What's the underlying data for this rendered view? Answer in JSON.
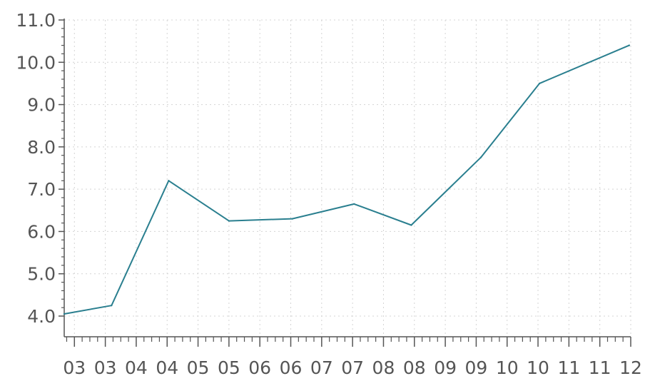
{
  "chart_data": {
    "type": "line",
    "title": "",
    "xlabel": "",
    "ylabel": "",
    "ylim": [
      4.0,
      11.0
    ],
    "grid": true,
    "y_ticks": [
      "4.0",
      "5.0",
      "6.0",
      "7.0",
      "8.0",
      "9.0",
      "10.0",
      "11.0"
    ],
    "x_tick_labels": [
      "03",
      "03",
      "04",
      "04",
      "05",
      "05",
      "06",
      "06",
      "07",
      "07",
      "08",
      "08",
      "09",
      "09",
      "10",
      "10",
      "11",
      "11",
      "12"
    ],
    "x": [
      "03",
      "04",
      "05",
      "06",
      "07",
      "08",
      "09",
      "10",
      "11",
      "12"
    ],
    "series": [
      {
        "color": "#2a7f8f",
        "values": [
          4.05,
          4.25,
          7.2,
          6.25,
          6.3,
          6.65,
          6.15,
          7.75,
          9.5,
          10.4
        ]
      }
    ]
  }
}
